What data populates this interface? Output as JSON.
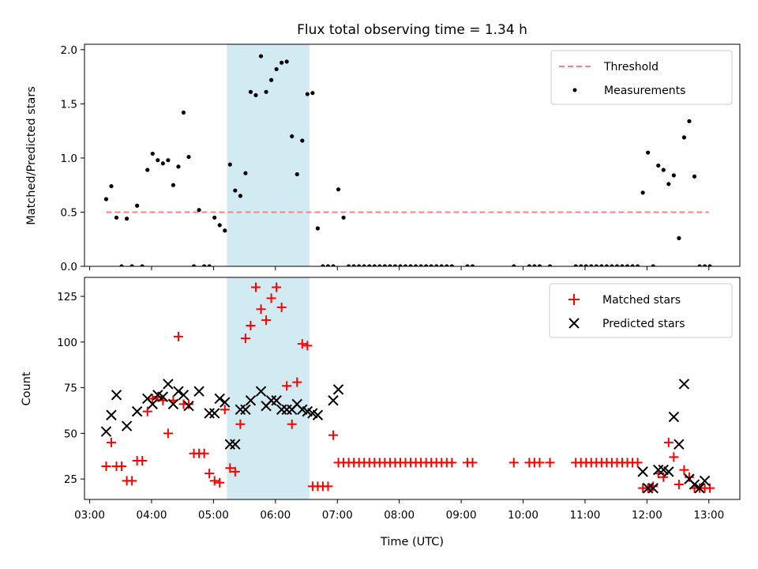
{
  "chart_data": [
    {
      "type": "scatter",
      "title": "Flux total observing time = 1.34 h",
      "ylabel": "Matched/Predicted stars",
      "xlim": [
        "02:55",
        "13:30"
      ],
      "ylim": [
        0,
        2.05
      ],
      "yticks": [
        "0.0",
        "0.5",
        "1.0",
        "1.5",
        "2.0"
      ],
      "highlight_span": [
        "05:13",
        "06:33"
      ],
      "highlight_color": "#add8e6",
      "legend_position": "top-right",
      "series": [
        {
          "name": "Threshold",
          "style": "dashed-line",
          "color": "#ff8080",
          "x": [
            "03:16",
            "13:00"
          ],
          "y": [
            0.5,
            0.5
          ]
        },
        {
          "name": "Measurements",
          "style": "dot",
          "color": "#000000",
          "x": [
            "03:16",
            "03:21",
            "03:26",
            "03:31",
            "03:36",
            "03:41",
            "03:46",
            "03:51",
            "03:56",
            "04:01",
            "04:06",
            "04:11",
            "04:16",
            "04:21",
            "04:26",
            "04:31",
            "04:36",
            "04:41",
            "04:46",
            "04:51",
            "04:56",
            "05:01",
            "05:06",
            "05:11",
            "05:16",
            "05:21",
            "05:26",
            "05:31",
            "05:36",
            "05:41",
            "05:46",
            "05:51",
            "05:56",
            "06:01",
            "06:06",
            "06:11",
            "06:16",
            "06:21",
            "06:26",
            "06:31",
            "06:36",
            "06:41",
            "06:46",
            "06:51",
            "06:56",
            "07:01",
            "07:06",
            "07:11",
            "07:16",
            "07:21",
            "07:26",
            "07:31",
            "07:36",
            "07:41",
            "07:46",
            "07:51",
            "07:56",
            "08:01",
            "08:06",
            "08:11",
            "08:16",
            "08:21",
            "08:26",
            "08:31",
            "08:36",
            "08:41",
            "08:46",
            "08:51",
            "09:06",
            "09:11",
            "09:51",
            "10:06",
            "10:11",
            "10:16",
            "10:26",
            "10:51",
            "10:56",
            "11:01",
            "11:06",
            "11:11",
            "11:16",
            "11:21",
            "11:26",
            "11:31",
            "11:36",
            "11:41",
            "11:46",
            "11:51",
            "11:56",
            "12:01",
            "12:06",
            "12:11",
            "12:16",
            "12:21",
            "12:26",
            "12:31",
            "12:36",
            "12:41",
            "12:46",
            "12:51",
            "12:56",
            "13:01"
          ],
          "y": [
            0.62,
            0.74,
            0.45,
            0.0,
            0.44,
            0.0,
            0.56,
            0.0,
            0.89,
            1.04,
            0.98,
            0.95,
            0.98,
            0.75,
            0.92,
            1.42,
            1.01,
            0.0,
            0.52,
            0.0,
            0.0,
            0.45,
            0.38,
            0.33,
            0.94,
            0.7,
            0.65,
            0.86,
            1.61,
            1.58,
            1.94,
            1.61,
            1.72,
            1.82,
            1.88,
            1.89,
            1.2,
            0.85,
            1.16,
            1.59,
            1.6,
            0.35,
            0.0,
            0.0,
            0.0,
            0.71,
            0.45,
            0.0,
            0.0,
            0.0,
            0.0,
            0.0,
            0.0,
            0.0,
            0.0,
            0.0,
            0.0,
            0.0,
            0.0,
            0.0,
            0.0,
            0.0,
            0.0,
            0.0,
            0.0,
            0.0,
            0.0,
            0.0,
            0.0,
            0.0,
            0.0,
            0.0,
            0.0,
            0.0,
            0.0,
            0.0,
            0.0,
            0.0,
            0.0,
            0.0,
            0.0,
            0.0,
            0.0,
            0.0,
            0.0,
            0.0,
            0.0,
            0.0,
            0.68,
            1.05,
            0.0,
            0.93,
            0.89,
            0.76,
            0.84,
            0.26,
            1.19,
            1.34,
            0.83,
            0.0,
            0.0,
            0.0
          ]
        }
      ]
    },
    {
      "type": "scatter",
      "xlabel": "Time (UTC)",
      "ylabel": "Count",
      "xlim": [
        "02:55",
        "13:30"
      ],
      "ylim": [
        13.8,
        135.4
      ],
      "yticks": [
        "25",
        "50",
        "75",
        "100",
        "125"
      ],
      "xticks": [
        "03:00",
        "04:00",
        "05:00",
        "06:00",
        "07:00",
        "08:00",
        "09:00",
        "10:00",
        "11:00",
        "12:00",
        "13:00"
      ],
      "highlight_span": [
        "05:13",
        "06:33"
      ],
      "highlight_color": "#add8e6",
      "legend_position": "top-right",
      "series": [
        {
          "name": "Matched stars",
          "style": "plus",
          "color": "#ff0000",
          "x": [
            "03:16",
            "03:21",
            "03:26",
            "03:31",
            "03:36",
            "03:41",
            "03:46",
            "03:51",
            "03:56",
            "04:01",
            "04:06",
            "04:11",
            "04:16",
            "04:21",
            "04:26",
            "04:31",
            "04:36",
            "04:41",
            "04:46",
            "04:51",
            "04:56",
            "05:01",
            "05:06",
            "05:11",
            "05:16",
            "05:21",
            "05:26",
            "05:31",
            "05:36",
            "05:41",
            "05:46",
            "05:51",
            "05:56",
            "06:01",
            "06:06",
            "06:11",
            "06:16",
            "06:21",
            "06:26",
            "06:31",
            "06:36",
            "06:41",
            "06:46",
            "06:51",
            "06:56",
            "07:01",
            "07:06",
            "07:11",
            "07:16",
            "07:21",
            "07:26",
            "07:31",
            "07:36",
            "07:41",
            "07:46",
            "07:51",
            "07:56",
            "08:01",
            "08:06",
            "08:11",
            "08:16",
            "08:21",
            "08:26",
            "08:31",
            "08:36",
            "08:41",
            "08:46",
            "08:51",
            "09:06",
            "09:11",
            "09:51",
            "10:06",
            "10:11",
            "10:16",
            "10:26",
            "10:51",
            "10:56",
            "11:01",
            "11:06",
            "11:11",
            "11:16",
            "11:21",
            "11:26",
            "11:31",
            "11:36",
            "11:41",
            "11:46",
            "11:51",
            "11:56",
            "12:01",
            "12:06",
            "12:11",
            "12:16",
            "12:21",
            "12:26",
            "12:31",
            "12:36",
            "12:41",
            "12:46",
            "12:51",
            "12:56",
            "13:01"
          ],
          "y": [
            32,
            45,
            32,
            32,
            24,
            24,
            35,
            35,
            62,
            69,
            70,
            68,
            50,
            68,
            103,
            66,
            66,
            39,
            39,
            39,
            28,
            24,
            23,
            63,
            31,
            29,
            55,
            102,
            109,
            130,
            118,
            112,
            124,
            130,
            119,
            76,
            55,
            78,
            99,
            98,
            21,
            21,
            21,
            21,
            49,
            34,
            34,
            34,
            34,
            34,
            34,
            34,
            34,
            34,
            34,
            34,
            34,
            34,
            34,
            34,
            34,
            34,
            34,
            34,
            34,
            34,
            34,
            34,
            34,
            34,
            34,
            34,
            34,
            34,
            34,
            34,
            34,
            34,
            34,
            34,
            34,
            34,
            34,
            34,
            34,
            34,
            34,
            34,
            20,
            20,
            21,
            28,
            26,
            45,
            37,
            22,
            30,
            26,
            20,
            20,
            20,
            20
          ]
        },
        {
          "name": "Predicted stars",
          "style": "x",
          "color": "#000000",
          "x": [
            "03:16",
            "03:21",
            "03:26",
            "03:36",
            "03:46",
            "03:56",
            "04:01",
            "04:06",
            "04:11",
            "04:16",
            "04:21",
            "04:26",
            "04:31",
            "04:36",
            "04:46",
            "04:56",
            "05:01",
            "05:06",
            "05:11",
            "05:16",
            "05:21",
            "05:26",
            "05:31",
            "05:36",
            "05:46",
            "05:51",
            "05:56",
            "06:01",
            "06:06",
            "06:11",
            "06:16",
            "06:21",
            "06:26",
            "06:31",
            "06:36",
            "06:41",
            "06:56",
            "07:01",
            "11:56",
            "12:01",
            "12:06",
            "12:11",
            "12:16",
            "12:21",
            "12:26",
            "12:31",
            "12:36",
            "12:41",
            "12:46",
            "12:51",
            "12:56"
          ],
          "y": [
            51,
            60,
            71,
            54,
            62,
            69,
            66,
            71,
            70,
            77,
            66,
            73,
            71,
            65,
            73,
            61,
            61,
            69,
            67,
            44,
            44,
            63,
            63,
            68,
            73,
            65,
            68,
            68,
            63,
            63,
            63,
            66,
            63,
            62,
            61,
            60,
            68,
            74,
            29,
            20,
            20,
            30,
            30,
            29,
            59,
            44,
            77,
            25,
            22,
            20,
            24
          ]
        }
      ]
    }
  ]
}
